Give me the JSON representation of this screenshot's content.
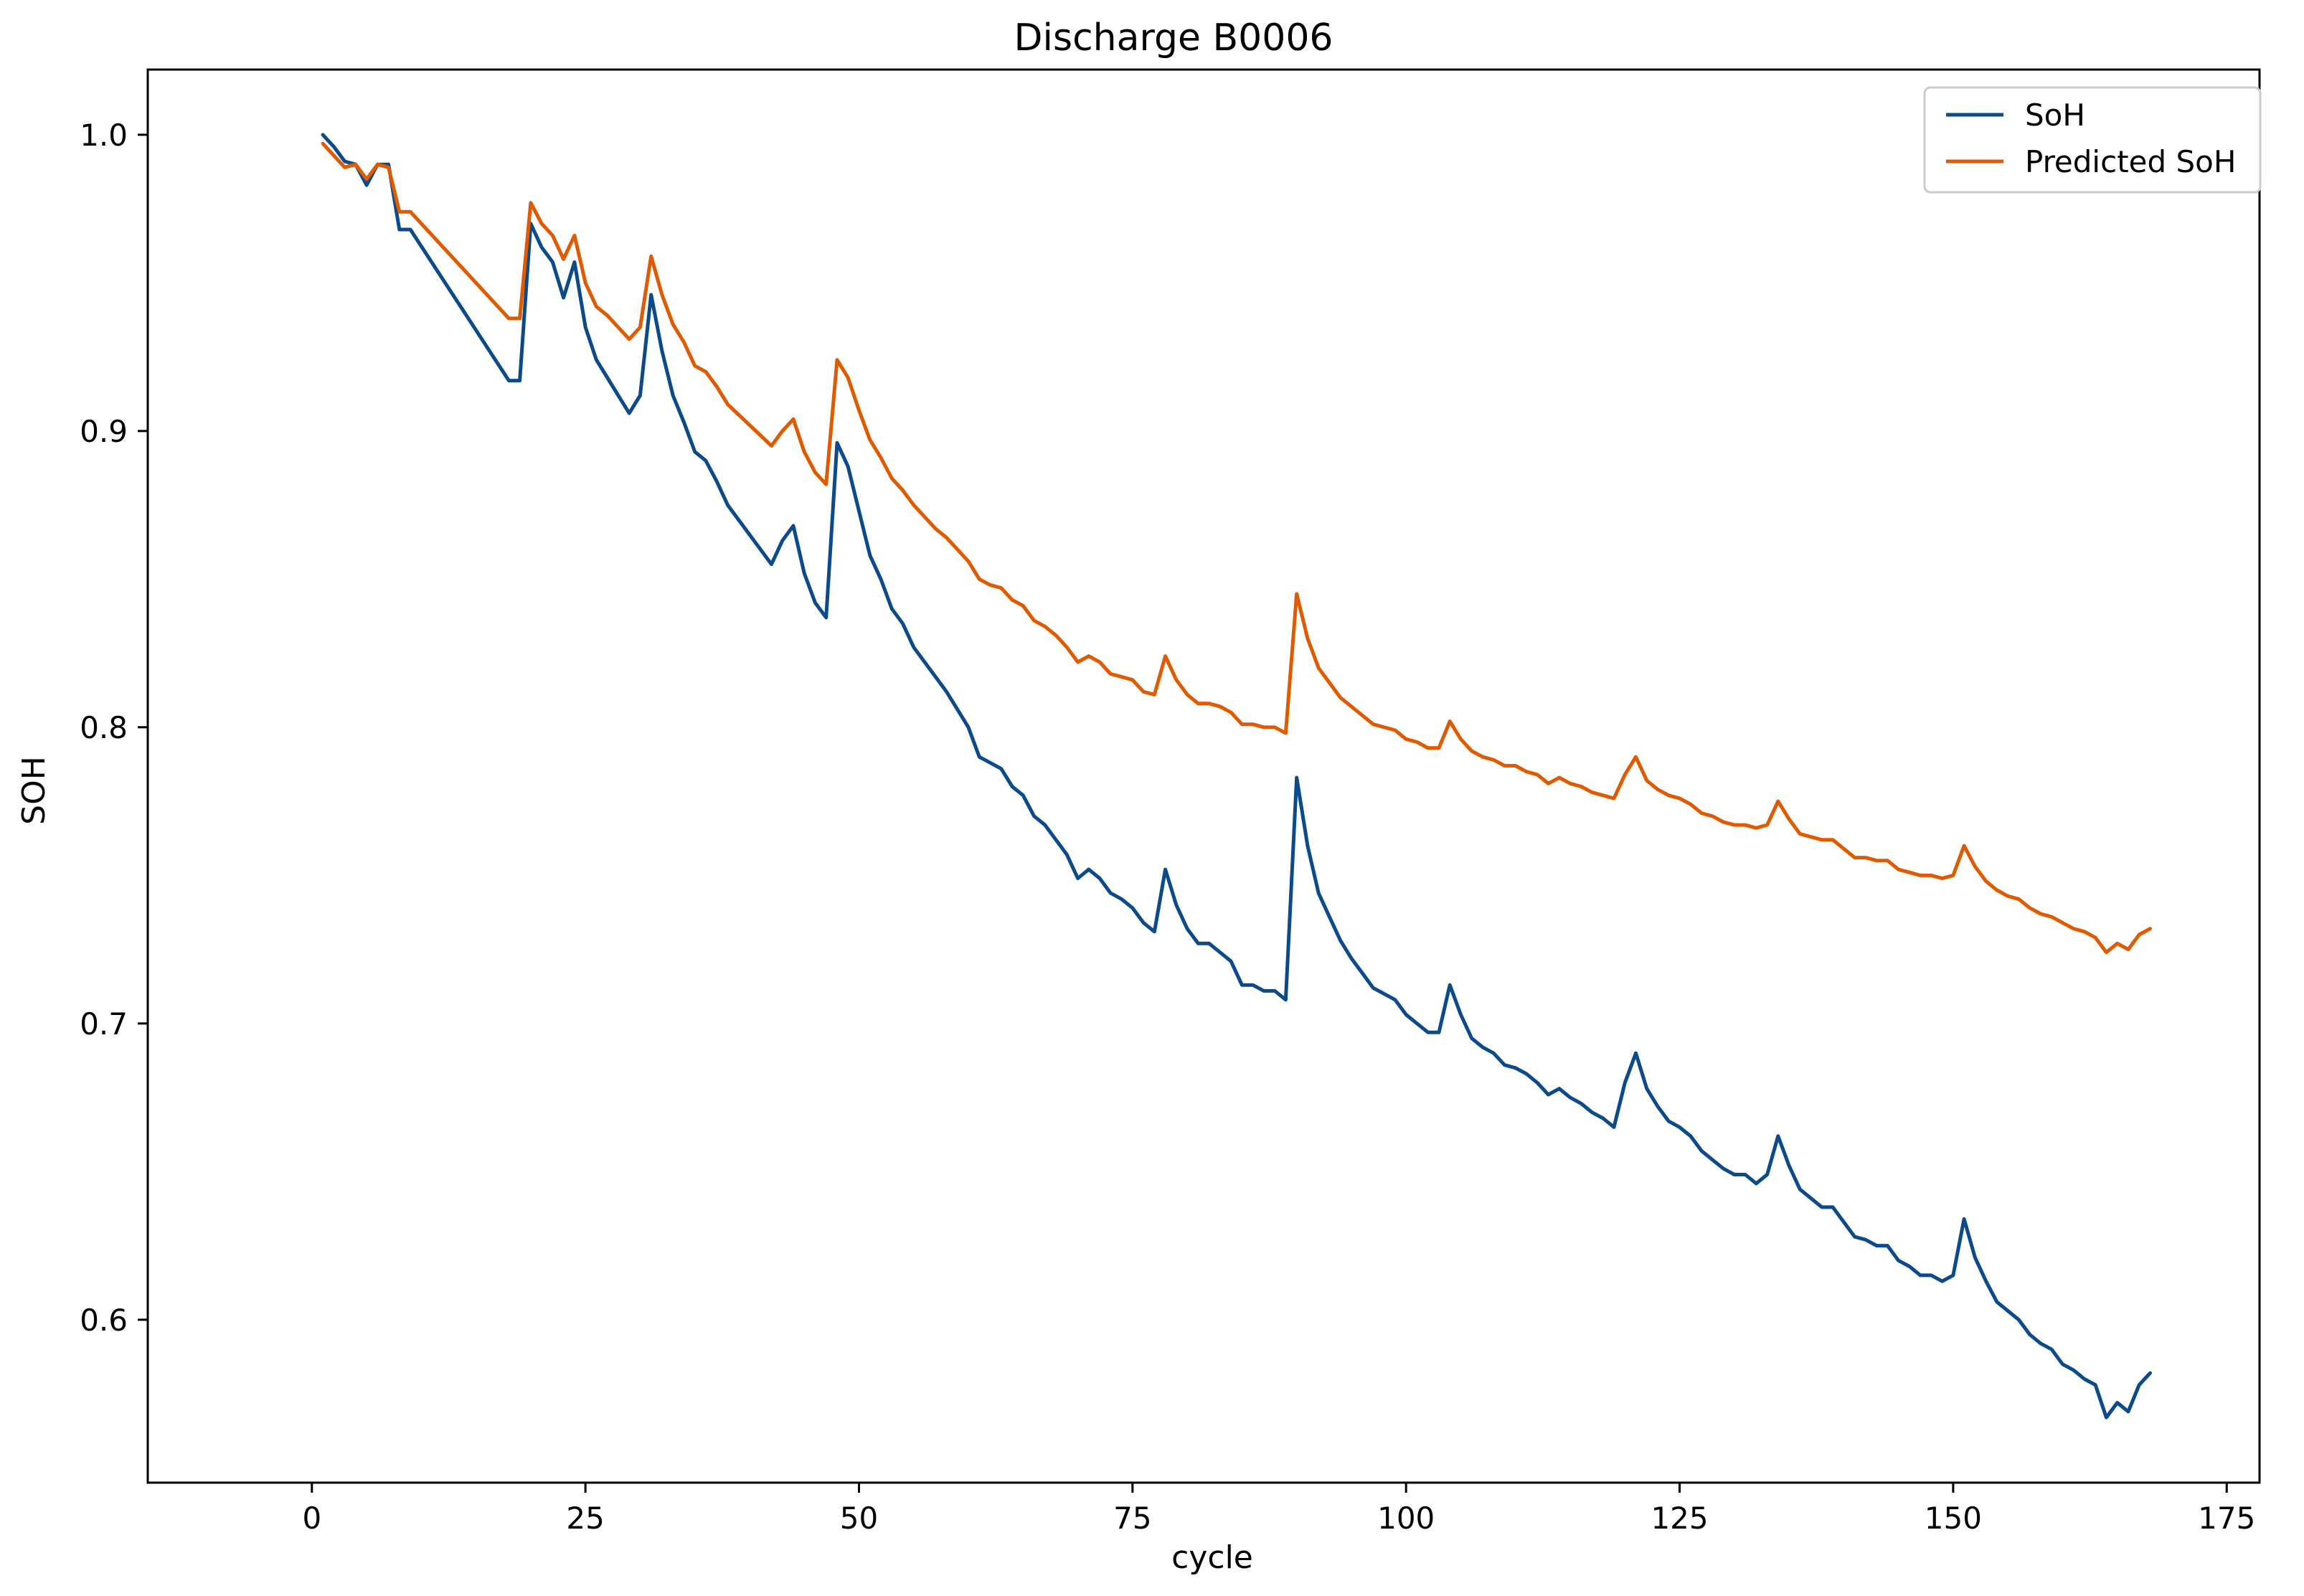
{
  "chart_data": {
    "type": "line",
    "title": "Discharge B0006",
    "xlabel": "cycle",
    "ylabel": "SOH",
    "xlim": [
      -15,
      178
    ],
    "ylim": [
      0.545,
      1.022
    ],
    "xticks": [
      0,
      25,
      50,
      75,
      100,
      125,
      150,
      175
    ],
    "yticks": [
      0.6,
      0.7,
      0.8,
      0.9,
      1.0
    ],
    "xtick_labels": [
      "0",
      "25",
      "50",
      "75",
      "100",
      "125",
      "150",
      "175"
    ],
    "ytick_labels": [
      "0.6",
      "0.7",
      "0.8",
      "0.9",
      "1.0"
    ],
    "grid": false,
    "legend_position": "upper right",
    "series": [
      {
        "name": "SoH",
        "color": "#0b4a8b",
        "points": [
          [
            1,
            1.0
          ],
          [
            2,
            0.996
          ],
          [
            3,
            0.991
          ],
          [
            4,
            0.99
          ],
          [
            5,
            0.983
          ],
          [
            6,
            0.99
          ],
          [
            7,
            0.99
          ],
          [
            8,
            0.968
          ],
          [
            9,
            0.968
          ],
          [
            18,
            0.917
          ],
          [
            19,
            0.917
          ],
          [
            20,
            0.97
          ],
          [
            21,
            0.962
          ],
          [
            22,
            0.957
          ],
          [
            23,
            0.945
          ],
          [
            24,
            0.957
          ],
          [
            25,
            0.935
          ],
          [
            26,
            0.924
          ],
          [
            27,
            0.918
          ],
          [
            28,
            0.912
          ],
          [
            29,
            0.906
          ],
          [
            30,
            0.912
          ],
          [
            31,
            0.946
          ],
          [
            32,
            0.927
          ],
          [
            33,
            0.912
          ],
          [
            34,
            0.903
          ],
          [
            35,
            0.893
          ],
          [
            36,
            0.89
          ],
          [
            37,
            0.883
          ],
          [
            38,
            0.875
          ],
          [
            42,
            0.855
          ],
          [
            43,
            0.863
          ],
          [
            44,
            0.868
          ],
          [
            45,
            0.852
          ],
          [
            46,
            0.842
          ],
          [
            47,
            0.837
          ],
          [
            48,
            0.896
          ],
          [
            49,
            0.888
          ],
          [
            50,
            0.873
          ],
          [
            51,
            0.858
          ],
          [
            52,
            0.85
          ],
          [
            53,
            0.84
          ],
          [
            54,
            0.835
          ],
          [
            55,
            0.827
          ],
          [
            56,
            0.822
          ],
          [
            57,
            0.817
          ],
          [
            58,
            0.812
          ],
          [
            59,
            0.806
          ],
          [
            60,
            0.8
          ],
          [
            61,
            0.79
          ],
          [
            62,
            0.788
          ],
          [
            63,
            0.786
          ],
          [
            64,
            0.78
          ],
          [
            65,
            0.777
          ],
          [
            66,
            0.77
          ],
          [
            67,
            0.767
          ],
          [
            68,
            0.762
          ],
          [
            69,
            0.757
          ],
          [
            70,
            0.749
          ],
          [
            71,
            0.752
          ],
          [
            72,
            0.749
          ],
          [
            73,
            0.744
          ],
          [
            74,
            0.742
          ],
          [
            75,
            0.739
          ],
          [
            76,
            0.734
          ],
          [
            77,
            0.731
          ],
          [
            78,
            0.752
          ],
          [
            79,
            0.74
          ],
          [
            80,
            0.732
          ],
          [
            81,
            0.727
          ],
          [
            82,
            0.727
          ],
          [
            83,
            0.724
          ],
          [
            84,
            0.721
          ],
          [
            85,
            0.713
          ],
          [
            86,
            0.713
          ],
          [
            87,
            0.711
          ],
          [
            88,
            0.711
          ],
          [
            89,
            0.708
          ],
          [
            90,
            0.783
          ],
          [
            91,
            0.76
          ],
          [
            92,
            0.744
          ],
          [
            93,
            0.736
          ],
          [
            94,
            0.728
          ],
          [
            95,
            0.722
          ],
          [
            96,
            0.717
          ],
          [
            97,
            0.712
          ],
          [
            98,
            0.71
          ],
          [
            99,
            0.708
          ],
          [
            100,
            0.703
          ],
          [
            101,
            0.7
          ],
          [
            102,
            0.697
          ],
          [
            103,
            0.697
          ],
          [
            104,
            0.713
          ],
          [
            105,
            0.703
          ],
          [
            106,
            0.695
          ],
          [
            107,
            0.692
          ],
          [
            108,
            0.69
          ],
          [
            109,
            0.686
          ],
          [
            110,
            0.685
          ],
          [
            111,
            0.683
          ],
          [
            112,
            0.68
          ],
          [
            113,
            0.676
          ],
          [
            114,
            0.678
          ],
          [
            115,
            0.675
          ],
          [
            116,
            0.673
          ],
          [
            117,
            0.67
          ],
          [
            118,
            0.668
          ],
          [
            119,
            0.665
          ],
          [
            120,
            0.68
          ],
          [
            121,
            0.69
          ],
          [
            122,
            0.678
          ],
          [
            123,
            0.672
          ],
          [
            124,
            0.667
          ],
          [
            125,
            0.665
          ],
          [
            126,
            0.662
          ],
          [
            127,
            0.657
          ],
          [
            128,
            0.654
          ],
          [
            129,
            0.651
          ],
          [
            130,
            0.649
          ],
          [
            131,
            0.649
          ],
          [
            132,
            0.646
          ],
          [
            133,
            0.649
          ],
          [
            134,
            0.662
          ],
          [
            135,
            0.652
          ],
          [
            136,
            0.644
          ],
          [
            137,
            0.641
          ],
          [
            138,
            0.638
          ],
          [
            139,
            0.638
          ],
          [
            140,
            0.633
          ],
          [
            141,
            0.628
          ],
          [
            142,
            0.627
          ],
          [
            143,
            0.625
          ],
          [
            144,
            0.625
          ],
          [
            145,
            0.62
          ],
          [
            146,
            0.618
          ],
          [
            147,
            0.615
          ],
          [
            148,
            0.615
          ],
          [
            149,
            0.613
          ],
          [
            150,
            0.615
          ],
          [
            151,
            0.634
          ],
          [
            152,
            0.621
          ],
          [
            153,
            0.613
          ],
          [
            154,
            0.606
          ],
          [
            155,
            0.603
          ],
          [
            156,
            0.6
          ],
          [
            157,
            0.595
          ],
          [
            158,
            0.592
          ],
          [
            159,
            0.59
          ],
          [
            160,
            0.585
          ],
          [
            161,
            0.583
          ],
          [
            162,
            0.58
          ],
          [
            163,
            0.578
          ],
          [
            164,
            0.567
          ],
          [
            165,
            0.572
          ],
          [
            166,
            0.569
          ],
          [
            167,
            0.578
          ],
          [
            168,
            0.582
          ]
        ]
      },
      {
        "name": "Predicted SoH",
        "color": "#e25a00",
        "points": [
          [
            1,
            0.997
          ],
          [
            2,
            0.993
          ],
          [
            3,
            0.989
          ],
          [
            4,
            0.99
          ],
          [
            5,
            0.985
          ],
          [
            6,
            0.99
          ],
          [
            7,
            0.989
          ],
          [
            8,
            0.974
          ],
          [
            9,
            0.974
          ],
          [
            18,
            0.938
          ],
          [
            19,
            0.938
          ],
          [
            20,
            0.977
          ],
          [
            21,
            0.97
          ],
          [
            22,
            0.966
          ],
          [
            23,
            0.958
          ],
          [
            24,
            0.966
          ],
          [
            25,
            0.95
          ],
          [
            26,
            0.942
          ],
          [
            27,
            0.939
          ],
          [
            28,
            0.935
          ],
          [
            29,
            0.931
          ],
          [
            30,
            0.935
          ],
          [
            31,
            0.959
          ],
          [
            32,
            0.946
          ],
          [
            33,
            0.936
          ],
          [
            34,
            0.93
          ],
          [
            35,
            0.922
          ],
          [
            36,
            0.92
          ],
          [
            37,
            0.915
          ],
          [
            38,
            0.909
          ],
          [
            42,
            0.895
          ],
          [
            43,
            0.9
          ],
          [
            44,
            0.904
          ],
          [
            45,
            0.893
          ],
          [
            46,
            0.886
          ],
          [
            47,
            0.882
          ],
          [
            48,
            0.924
          ],
          [
            49,
            0.918
          ],
          [
            50,
            0.907
          ],
          [
            51,
            0.897
          ],
          [
            52,
            0.891
          ],
          [
            53,
            0.884
          ],
          [
            54,
            0.88
          ],
          [
            55,
            0.875
          ],
          [
            56,
            0.871
          ],
          [
            57,
            0.867
          ],
          [
            58,
            0.864
          ],
          [
            59,
            0.86
          ],
          [
            60,
            0.856
          ],
          [
            61,
            0.85
          ],
          [
            62,
            0.848
          ],
          [
            63,
            0.847
          ],
          [
            64,
            0.843
          ],
          [
            65,
            0.841
          ],
          [
            66,
            0.836
          ],
          [
            67,
            0.834
          ],
          [
            68,
            0.831
          ],
          [
            69,
            0.827
          ],
          [
            70,
            0.822
          ],
          [
            71,
            0.824
          ],
          [
            72,
            0.822
          ],
          [
            73,
            0.818
          ],
          [
            74,
            0.817
          ],
          [
            75,
            0.816
          ],
          [
            76,
            0.812
          ],
          [
            77,
            0.811
          ],
          [
            78,
            0.824
          ],
          [
            79,
            0.816
          ],
          [
            80,
            0.811
          ],
          [
            81,
            0.808
          ],
          [
            82,
            0.808
          ],
          [
            83,
            0.807
          ],
          [
            84,
            0.805
          ],
          [
            85,
            0.801
          ],
          [
            86,
            0.801
          ],
          [
            87,
            0.8
          ],
          [
            88,
            0.8
          ],
          [
            89,
            0.798
          ],
          [
            90,
            0.845
          ],
          [
            91,
            0.83
          ],
          [
            92,
            0.82
          ],
          [
            93,
            0.815
          ],
          [
            94,
            0.81
          ],
          [
            95,
            0.807
          ],
          [
            96,
            0.804
          ],
          [
            97,
            0.801
          ],
          [
            98,
            0.8
          ],
          [
            99,
            0.799
          ],
          [
            100,
            0.796
          ],
          [
            101,
            0.795
          ],
          [
            102,
            0.793
          ],
          [
            103,
            0.793
          ],
          [
            104,
            0.802
          ],
          [
            105,
            0.796
          ],
          [
            106,
            0.792
          ],
          [
            107,
            0.79
          ],
          [
            108,
            0.789
          ],
          [
            109,
            0.787
          ],
          [
            110,
            0.787
          ],
          [
            111,
            0.785
          ],
          [
            112,
            0.784
          ],
          [
            113,
            0.781
          ],
          [
            114,
            0.783
          ],
          [
            115,
            0.781
          ],
          [
            116,
            0.78
          ],
          [
            117,
            0.778
          ],
          [
            118,
            0.777
          ],
          [
            119,
            0.776
          ],
          [
            120,
            0.784
          ],
          [
            121,
            0.79
          ],
          [
            122,
            0.782
          ],
          [
            123,
            0.779
          ],
          [
            124,
            0.777
          ],
          [
            125,
            0.776
          ],
          [
            126,
            0.774
          ],
          [
            127,
            0.771
          ],
          [
            128,
            0.77
          ],
          [
            129,
            0.768
          ],
          [
            130,
            0.767
          ],
          [
            131,
            0.767
          ],
          [
            132,
            0.766
          ],
          [
            133,
            0.767
          ],
          [
            134,
            0.775
          ],
          [
            135,
            0.769
          ],
          [
            136,
            0.764
          ],
          [
            137,
            0.763
          ],
          [
            138,
            0.762
          ],
          [
            139,
            0.762
          ],
          [
            140,
            0.759
          ],
          [
            141,
            0.756
          ],
          [
            142,
            0.756
          ],
          [
            143,
            0.755
          ],
          [
            144,
            0.755
          ],
          [
            145,
            0.752
          ],
          [
            146,
            0.751
          ],
          [
            147,
            0.75
          ],
          [
            148,
            0.75
          ],
          [
            149,
            0.749
          ],
          [
            150,
            0.75
          ],
          [
            151,
            0.76
          ],
          [
            152,
            0.753
          ],
          [
            153,
            0.748
          ],
          [
            154,
            0.745
          ],
          [
            155,
            0.743
          ],
          [
            156,
            0.742
          ],
          [
            157,
            0.739
          ],
          [
            158,
            0.737
          ],
          [
            159,
            0.736
          ],
          [
            160,
            0.734
          ],
          [
            161,
            0.732
          ],
          [
            162,
            0.731
          ],
          [
            163,
            0.729
          ],
          [
            164,
            0.724
          ],
          [
            165,
            0.727
          ],
          [
            166,
            0.725
          ],
          [
            167,
            0.73
          ],
          [
            168,
            0.732
          ]
        ]
      }
    ]
  }
}
